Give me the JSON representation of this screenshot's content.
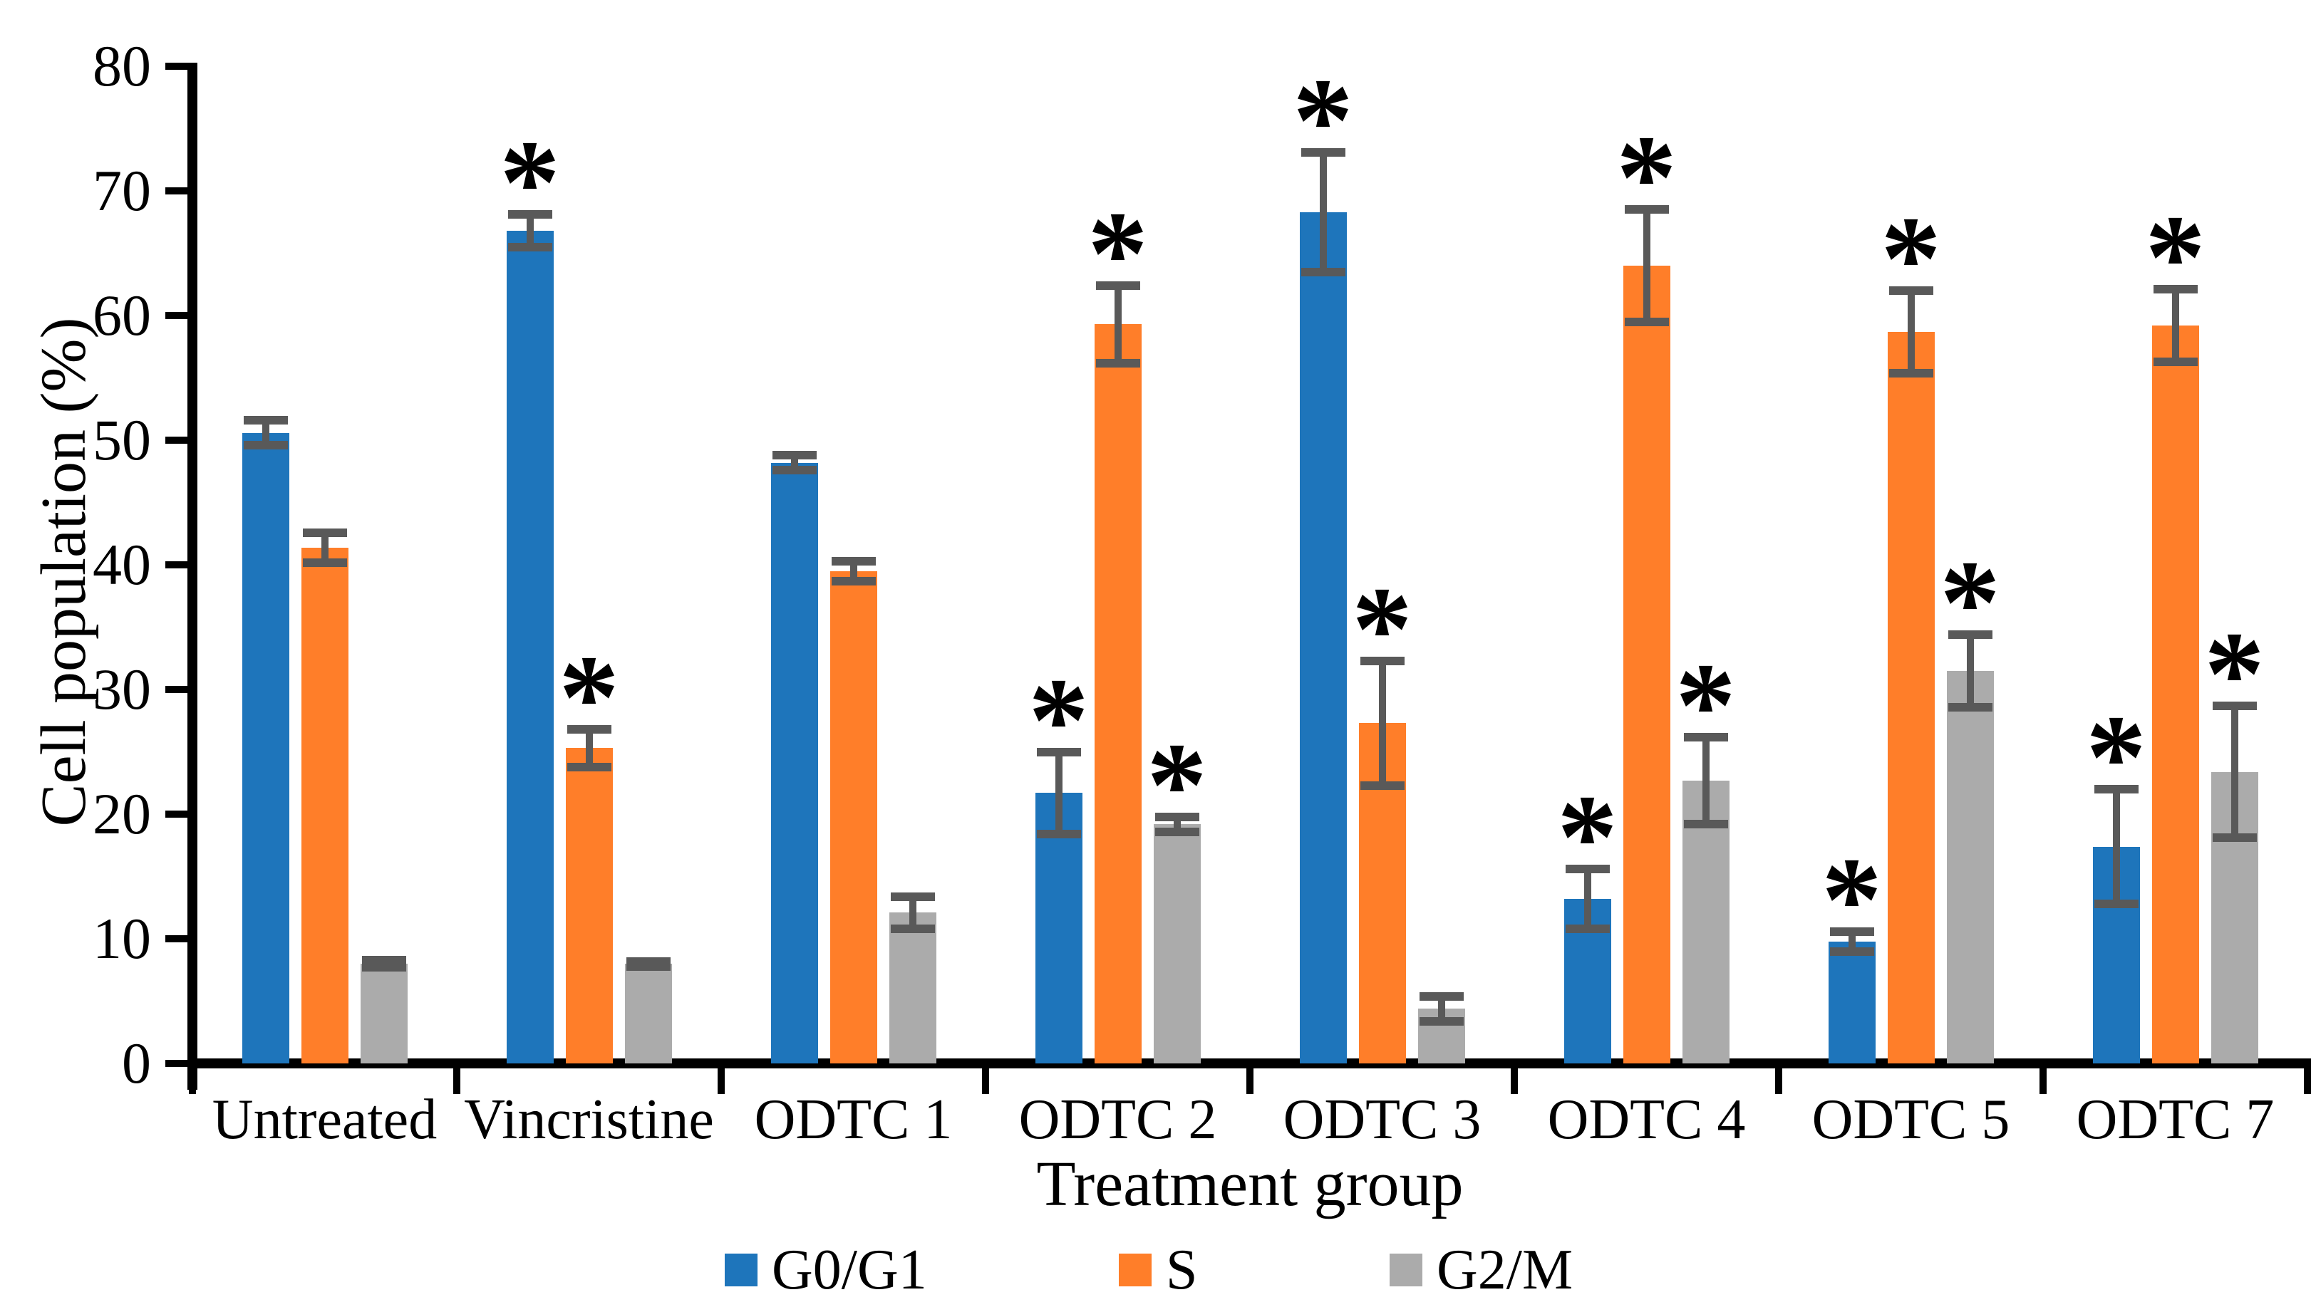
{
  "chart_data": {
    "type": "bar",
    "title": "",
    "xlabel": "Treatment group",
    "ylabel": "Cell population (%)",
    "ylim": [
      0,
      80
    ],
    "yticks": [
      0,
      10,
      20,
      30,
      40,
      50,
      60,
      70,
      80
    ],
    "grid": false,
    "legend_position": "bottom",
    "significance_marker": "*",
    "error_bar_color": "#595959",
    "axis_color": "#000000",
    "background_color": "#ffffff",
    "categories": [
      "Untreated",
      "Vincristine",
      "ODTC 1",
      "ODTC 2",
      "ODTC 3",
      "ODTC 4",
      "ODTC 5",
      "ODTC 7"
    ],
    "series": [
      {
        "name": "G0/G1",
        "color": "#1E75BB",
        "values": [
          50.6,
          66.8,
          48.2,
          21.7,
          68.3,
          13.2,
          9.8,
          17.4
        ],
        "errors": [
          1.0,
          1.3,
          0.6,
          3.3,
          4.8,
          2.4,
          0.8,
          4.6
        ],
        "significant": [
          false,
          true,
          false,
          true,
          true,
          true,
          true,
          true
        ]
      },
      {
        "name": "S",
        "color": "#FF7E29",
        "values": [
          41.4,
          25.3,
          39.5,
          59.3,
          27.3,
          64.0,
          58.7,
          59.2
        ],
        "errors": [
          1.2,
          1.5,
          0.8,
          3.1,
          5.0,
          4.5,
          3.3,
          2.9
        ],
        "significant": [
          false,
          true,
          false,
          true,
          true,
          true,
          true,
          true
        ]
      },
      {
        "name": "G2/M",
        "color": "#ABABAB",
        "values": [
          8.0,
          8.0,
          12.1,
          19.2,
          4.4,
          22.7,
          31.5,
          23.4
        ],
        "errors": [
          0.3,
          0.2,
          1.3,
          0.6,
          1.0,
          3.5,
          2.9,
          5.3
        ],
        "significant": [
          false,
          false,
          false,
          true,
          false,
          true,
          true,
          true
        ]
      }
    ]
  }
}
